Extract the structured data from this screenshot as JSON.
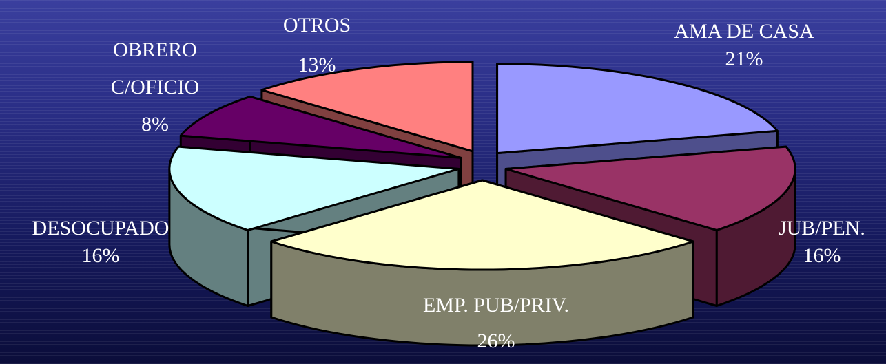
{
  "chart_data": {
    "type": "pie",
    "style": "3d-exploded",
    "slices": [
      {
        "label": "AMA DE CASA",
        "pct_label": "21%",
        "value": 21,
        "color": "#9999ff",
        "side_color": "#4e4f8c"
      },
      {
        "label": "JUB/PEN.",
        "pct_label": "16%",
        "value": 16,
        "color": "#993366",
        "side_color": "#4f1a33"
      },
      {
        "label": "EMP. PUB/PRIV.",
        "pct_label": "26%",
        "value": 26,
        "color": "#ffffcc",
        "side_color": "#80806a"
      },
      {
        "label": "DESOCUPADO",
        "pct_label": "16%",
        "value": 16,
        "color": "#ccffff",
        "side_color": "#648080"
      },
      {
        "label": "OBRERO C/OFICIO",
        "label_lines": [
          "OBRERO",
          "C/OFICIO"
        ],
        "pct_label": "8%",
        "value": 8,
        "color": "#660066",
        "side_color": "#330033"
      },
      {
        "label": "OTROS",
        "pct_label": "13%",
        "value": 13,
        "color": "#ff8080",
        "side_color": "#804040"
      }
    ]
  }
}
